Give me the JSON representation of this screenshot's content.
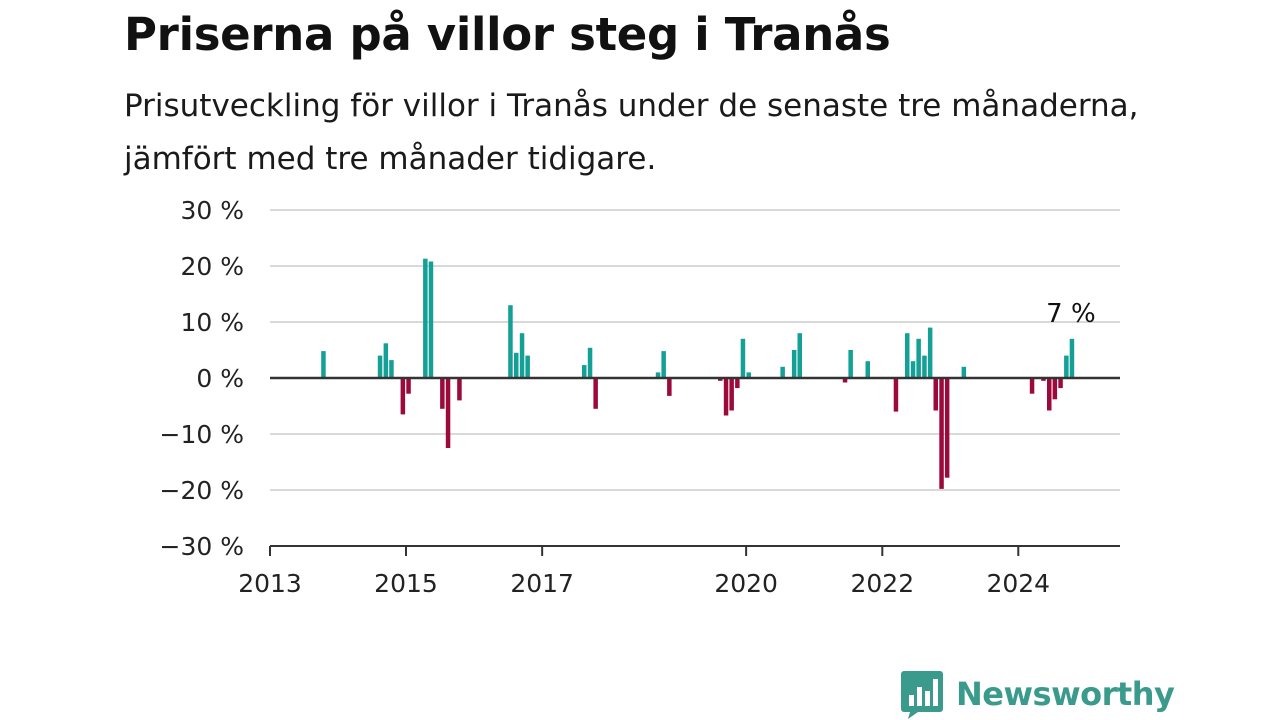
{
  "title": "Priserna på villor steg i Tranås",
  "subtitle": "Prisutveckling för villor i Tranås under de senaste tre månaderna, jämfört med tre månader tidigare.",
  "brand": {
    "name": "Newsworthy",
    "icon": "newsworthy-logo-icon",
    "color": "#3a9a8c"
  },
  "chart_data": {
    "type": "bar",
    "x_type": "date",
    "ylim": [
      -30,
      30
    ],
    "yticks": [
      30,
      20,
      10,
      0,
      -10,
      -20,
      -30
    ],
    "ytick_labels": [
      "30 %",
      "20 %",
      "10 %",
      "0 %",
      "−10 %",
      "−20 %",
      "−30 %"
    ],
    "xlim": [
      "2013-01-01",
      "2025-06-30"
    ],
    "xticks": [
      "2013-01-01",
      "2015-01-01",
      "2017-01-01",
      "2020-01-01",
      "2022-01-01",
      "2024-01-01"
    ],
    "xtick_labels": [
      "2013",
      "2015",
      "2017",
      "2020",
      "2022",
      "2024"
    ],
    "grid": true,
    "colors": {
      "positive": "#14a096",
      "negative": "#9c0a3c",
      "grid": "#d9d9d9",
      "zero": "#333333"
    },
    "last_value_label": "7 %",
    "points": [
      {
        "x": "2013-10-15",
        "y": 4.8
      },
      {
        "x": "2014-08-15",
        "y": 4.0
      },
      {
        "x": "2014-09-15",
        "y": 6.2
      },
      {
        "x": "2014-10-15",
        "y": 3.2
      },
      {
        "x": "2014-12-15",
        "y": -6.5
      },
      {
        "x": "2015-01-15",
        "y": -2.8
      },
      {
        "x": "2015-04-15",
        "y": 21.3
      },
      {
        "x": "2015-05-15",
        "y": 20.8
      },
      {
        "x": "2015-07-15",
        "y": -5.5
      },
      {
        "x": "2015-08-15",
        "y": -12.5
      },
      {
        "x": "2015-10-15",
        "y": -4.0
      },
      {
        "x": "2016-07-15",
        "y": 13.0
      },
      {
        "x": "2016-08-15",
        "y": 4.5
      },
      {
        "x": "2016-09-15",
        "y": 8.0
      },
      {
        "x": "2016-10-15",
        "y": 4.0
      },
      {
        "x": "2017-08-15",
        "y": 2.3
      },
      {
        "x": "2017-09-15",
        "y": 5.4
      },
      {
        "x": "2017-10-15",
        "y": -5.5
      },
      {
        "x": "2018-09-15",
        "y": 1.0
      },
      {
        "x": "2018-10-15",
        "y": 4.8
      },
      {
        "x": "2018-11-15",
        "y": -3.2
      },
      {
        "x": "2019-08-15",
        "y": -0.5
      },
      {
        "x": "2019-09-15",
        "y": -6.7
      },
      {
        "x": "2019-10-15",
        "y": -5.8
      },
      {
        "x": "2019-11-15",
        "y": -1.8
      },
      {
        "x": "2019-12-15",
        "y": 7.0
      },
      {
        "x": "2020-01-15",
        "y": 1.0
      },
      {
        "x": "2020-07-15",
        "y": 2.0
      },
      {
        "x": "2020-09-15",
        "y": 5.0
      },
      {
        "x": "2020-10-15",
        "y": 8.0
      },
      {
        "x": "2021-06-15",
        "y": -0.8
      },
      {
        "x": "2021-07-15",
        "y": 5.0
      },
      {
        "x": "2021-10-15",
        "y": 3.0
      },
      {
        "x": "2022-03-15",
        "y": -6.0
      },
      {
        "x": "2022-05-15",
        "y": 8.0
      },
      {
        "x": "2022-06-15",
        "y": 3.0
      },
      {
        "x": "2022-07-15",
        "y": 7.0
      },
      {
        "x": "2022-08-15",
        "y": 4.0
      },
      {
        "x": "2022-09-15",
        "y": 9.0
      },
      {
        "x": "2022-10-15",
        "y": -5.8
      },
      {
        "x": "2022-11-15",
        "y": -19.8
      },
      {
        "x": "2022-12-15",
        "y": -17.8
      },
      {
        "x": "2023-03-15",
        "y": 2.0
      },
      {
        "x": "2024-03-15",
        "y": -2.8
      },
      {
        "x": "2024-05-15",
        "y": -0.5
      },
      {
        "x": "2024-06-15",
        "y": -5.8
      },
      {
        "x": "2024-07-15",
        "y": -3.8
      },
      {
        "x": "2024-08-15",
        "y": -1.8
      },
      {
        "x": "2024-09-15",
        "y": 4.0
      },
      {
        "x": "2024-10-15",
        "y": 7.0
      }
    ]
  }
}
